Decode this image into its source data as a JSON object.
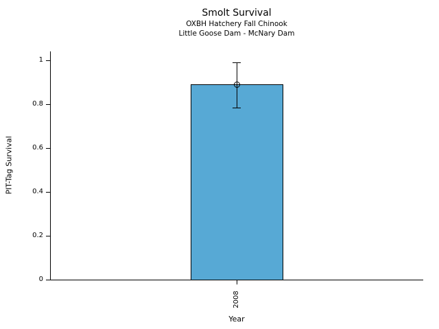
{
  "chart_data": {
    "type": "bar",
    "title": "Smolt Survival",
    "subtitle1": "OXBH Hatchery Fall Chinook",
    "subtitle2": "Little Goose Dam - McNary Dam",
    "xlabel": "Year",
    "ylabel": "PIT-Tag Survival",
    "categories": [
      "2008"
    ],
    "values": [
      0.89
    ],
    "error_low": [
      0.785
    ],
    "error_high": [
      0.99
    ],
    "ylim": [
      0,
      1
    ],
    "ytick_labels": [
      "0",
      "0.2",
      "0.4",
      "0.6",
      "0.8",
      "1"
    ],
    "ytick_values": [
      0,
      0.2,
      0.4,
      0.6,
      0.8,
      1
    ],
    "bar_color": "#57a9d5",
    "bar_edge_color": "#000000",
    "marker": "open-circle",
    "grid": false,
    "legend_position": "none"
  }
}
